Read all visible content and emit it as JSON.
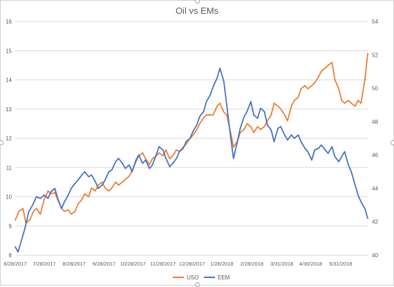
{
  "chart_data": {
    "type": "line",
    "title": "Oil vs EMs",
    "x_tick_labels": [
      "6/28/2017",
      "7/28/2017",
      "8/28/2017",
      "9/28/2017",
      "10/28/2017",
      "11/28/2017",
      "12/28/2017",
      "1/28/2018",
      "2/28/2018",
      "3/31/2018",
      "4/30/2018",
      "5/31/2018"
    ],
    "y_left_ticks": [
      "8",
      "9",
      "10",
      "11",
      "12",
      "13",
      "14",
      "15",
      "16"
    ],
    "y_right_ticks": [
      "40",
      "42",
      "44",
      "46",
      "48",
      "50",
      "52",
      "54"
    ],
    "ylim_left": [
      8,
      16
    ],
    "ylim_right": [
      40,
      54
    ],
    "grid": "horizontal",
    "legend_position": "bottom",
    "series": [
      {
        "name": "USO",
        "axis": "left",
        "color": "#ED7D31",
        "points": [
          [
            "2017-06-28",
            9.2
          ],
          [
            "2017-07-02",
            9.5
          ],
          [
            "2017-07-06",
            9.6
          ],
          [
            "2017-07-09",
            9.1
          ],
          [
            "2017-07-13",
            9.2
          ],
          [
            "2017-07-17",
            9.5
          ],
          [
            "2017-07-20",
            9.6
          ],
          [
            "2017-07-24",
            9.4
          ],
          [
            "2017-07-28",
            9.9
          ],
          [
            "2017-08-01",
            10.2
          ],
          [
            "2017-08-04",
            10.1
          ],
          [
            "2017-08-08",
            10.15
          ],
          [
            "2017-08-11",
            9.9
          ],
          [
            "2017-08-15",
            9.6
          ],
          [
            "2017-08-18",
            9.5
          ],
          [
            "2017-08-22",
            9.55
          ],
          [
            "2017-08-25",
            9.4
          ],
          [
            "2017-08-29",
            9.5
          ],
          [
            "2017-09-01",
            9.75
          ],
          [
            "2017-09-05",
            9.9
          ],
          [
            "2017-09-08",
            10.1
          ],
          [
            "2017-09-12",
            10.0
          ],
          [
            "2017-09-15",
            10.3
          ],
          [
            "2017-09-19",
            10.2
          ],
          [
            "2017-09-22",
            10.4
          ],
          [
            "2017-09-26",
            10.5
          ],
          [
            "2017-09-29",
            10.3
          ],
          [
            "2017-10-03",
            10.2
          ],
          [
            "2017-10-06",
            10.3
          ],
          [
            "2017-10-10",
            10.5
          ],
          [
            "2017-10-13",
            10.4
          ],
          [
            "2017-10-17",
            10.5
          ],
          [
            "2017-10-20",
            10.6
          ],
          [
            "2017-10-24",
            10.7
          ],
          [
            "2017-10-27",
            10.9
          ],
          [
            "2017-10-31",
            11.2
          ],
          [
            "2017-11-03",
            11.4
          ],
          [
            "2017-11-07",
            11.5
          ],
          [
            "2017-11-10",
            11.3
          ],
          [
            "2017-11-14",
            11.1
          ],
          [
            "2017-11-17",
            11.3
          ],
          [
            "2017-11-21",
            11.4
          ],
          [
            "2017-11-24",
            11.5
          ],
          [
            "2017-11-28",
            11.4
          ],
          [
            "2017-12-01",
            11.6
          ],
          [
            "2017-12-05",
            11.3
          ],
          [
            "2017-12-08",
            11.4
          ],
          [
            "2017-12-12",
            11.6
          ],
          [
            "2017-12-15",
            11.55
          ],
          [
            "2017-12-19",
            11.7
          ],
          [
            "2017-12-22",
            11.8
          ],
          [
            "2017-12-26",
            12.0
          ],
          [
            "2017-12-29",
            12.1
          ],
          [
            "2018-01-02",
            12.3
          ],
          [
            "2018-01-05",
            12.5
          ],
          [
            "2018-01-09",
            12.7
          ],
          [
            "2018-01-12",
            12.8
          ],
          [
            "2018-01-16",
            12.8
          ],
          [
            "2018-01-19",
            12.8
          ],
          [
            "2018-01-23",
            13.1
          ],
          [
            "2018-01-26",
            13.2
          ],
          [
            "2018-01-30",
            12.9
          ],
          [
            "2018-02-02",
            12.8
          ],
          [
            "2018-02-06",
            12.2
          ],
          [
            "2018-02-09",
            11.7
          ],
          [
            "2018-02-13",
            11.9
          ],
          [
            "2018-02-16",
            12.2
          ],
          [
            "2018-02-20",
            12.3
          ],
          [
            "2018-02-23",
            12.5
          ],
          [
            "2018-02-27",
            12.4
          ],
          [
            "2018-03-02",
            12.2
          ],
          [
            "2018-03-06",
            12.4
          ],
          [
            "2018-03-09",
            12.3
          ],
          [
            "2018-03-13",
            12.4
          ],
          [
            "2018-03-16",
            12.6
          ],
          [
            "2018-03-20",
            12.8
          ],
          [
            "2018-03-23",
            13.2
          ],
          [
            "2018-03-27",
            13.1
          ],
          [
            "2018-03-30",
            13.0
          ],
          [
            "2018-04-03",
            12.8
          ],
          [
            "2018-04-06",
            12.6
          ],
          [
            "2018-04-10",
            13.1
          ],
          [
            "2018-04-13",
            13.3
          ],
          [
            "2018-04-17",
            13.4
          ],
          [
            "2018-04-20",
            13.7
          ],
          [
            "2018-04-24",
            13.8
          ],
          [
            "2018-04-27",
            13.7
          ],
          [
            "2018-05-01",
            13.8
          ],
          [
            "2018-05-04",
            13.9
          ],
          [
            "2018-05-08",
            14.1
          ],
          [
            "2018-05-11",
            14.3
          ],
          [
            "2018-05-15",
            14.4
          ],
          [
            "2018-05-18",
            14.5
          ],
          [
            "2018-05-22",
            14.6
          ],
          [
            "2018-05-25",
            14.0
          ],
          [
            "2018-05-29",
            13.7
          ],
          [
            "2018-06-01",
            13.3
          ],
          [
            "2018-06-04",
            13.2
          ],
          [
            "2018-06-08",
            13.3
          ],
          [
            "2018-06-11",
            13.2
          ],
          [
            "2018-06-15",
            13.1
          ],
          [
            "2018-06-18",
            13.3
          ],
          [
            "2018-06-21",
            13.2
          ],
          [
            "2018-06-25",
            14.0
          ],
          [
            "2018-06-28",
            14.9
          ]
        ]
      },
      {
        "name": "EEM",
        "axis": "right",
        "color": "#4472C4",
        "points": [
          [
            "2017-06-28",
            40.5
          ],
          [
            "2017-07-01",
            40.2
          ],
          [
            "2017-07-05",
            41.0
          ],
          [
            "2017-07-08",
            41.6
          ],
          [
            "2017-07-12",
            42.6
          ],
          [
            "2017-07-16",
            43.0
          ],
          [
            "2017-07-20",
            43.5
          ],
          [
            "2017-07-24",
            43.4
          ],
          [
            "2017-07-28",
            43.6
          ],
          [
            "2017-08-01",
            43.4
          ],
          [
            "2017-08-04",
            43.8
          ],
          [
            "2017-08-08",
            44.0
          ],
          [
            "2017-08-11",
            43.4
          ],
          [
            "2017-08-15",
            42.8
          ],
          [
            "2017-08-18",
            43.2
          ],
          [
            "2017-08-22",
            43.6
          ],
          [
            "2017-08-25",
            44.0
          ],
          [
            "2017-08-29",
            44.3
          ],
          [
            "2017-09-01",
            44.5
          ],
          [
            "2017-09-05",
            44.8
          ],
          [
            "2017-09-08",
            45.0
          ],
          [
            "2017-09-12",
            44.7
          ],
          [
            "2017-09-15",
            44.8
          ],
          [
            "2017-09-19",
            44.4
          ],
          [
            "2017-09-22",
            44.0
          ],
          [
            "2017-09-26",
            44.2
          ],
          [
            "2017-09-29",
            44.5
          ],
          [
            "2017-10-03",
            45.0
          ],
          [
            "2017-10-06",
            45.1
          ],
          [
            "2017-10-10",
            45.6
          ],
          [
            "2017-10-13",
            45.8
          ],
          [
            "2017-10-17",
            45.5
          ],
          [
            "2017-10-20",
            45.2
          ],
          [
            "2017-10-24",
            45.4
          ],
          [
            "2017-10-27",
            45.0
          ],
          [
            "2017-10-31",
            45.7
          ],
          [
            "2017-11-03",
            46.0
          ],
          [
            "2017-11-07",
            45.5
          ],
          [
            "2017-11-10",
            45.7
          ],
          [
            "2017-11-14",
            45.2
          ],
          [
            "2017-11-17",
            45.4
          ],
          [
            "2017-11-21",
            46.0
          ],
          [
            "2017-11-24",
            46.5
          ],
          [
            "2017-11-28",
            46.3
          ],
          [
            "2017-12-01",
            45.8
          ],
          [
            "2017-12-05",
            45.3
          ],
          [
            "2017-12-08",
            45.5
          ],
          [
            "2017-12-12",
            45.8
          ],
          [
            "2017-12-15",
            46.2
          ],
          [
            "2017-12-19",
            46.4
          ],
          [
            "2017-12-22",
            46.8
          ],
          [
            "2017-12-26",
            47.0
          ],
          [
            "2017-12-29",
            47.4
          ],
          [
            "2018-01-02",
            47.8
          ],
          [
            "2018-01-05",
            48.3
          ],
          [
            "2018-01-09",
            48.6
          ],
          [
            "2018-01-12",
            49.2
          ],
          [
            "2018-01-16",
            49.6
          ],
          [
            "2018-01-19",
            50.1
          ],
          [
            "2018-01-23",
            50.6
          ],
          [
            "2018-01-26",
            51.2
          ],
          [
            "2018-01-30",
            50.4
          ],
          [
            "2018-02-02",
            49.0
          ],
          [
            "2018-02-06",
            47.1
          ],
          [
            "2018-02-09",
            45.8
          ],
          [
            "2018-02-13",
            46.8
          ],
          [
            "2018-02-16",
            47.6
          ],
          [
            "2018-02-20",
            48.3
          ],
          [
            "2018-02-23",
            48.6
          ],
          [
            "2018-02-27",
            49.2
          ],
          [
            "2018-03-02",
            48.4
          ],
          [
            "2018-03-06",
            48.2
          ],
          [
            "2018-03-09",
            48.8
          ],
          [
            "2018-03-13",
            48.6
          ],
          [
            "2018-03-16",
            47.8
          ],
          [
            "2018-03-20",
            47.5
          ],
          [
            "2018-03-23",
            46.8
          ],
          [
            "2018-03-27",
            47.6
          ],
          [
            "2018-03-30",
            47.7
          ],
          [
            "2018-04-03",
            47.2
          ],
          [
            "2018-04-06",
            46.9
          ],
          [
            "2018-04-10",
            47.2
          ],
          [
            "2018-04-13",
            47.0
          ],
          [
            "2018-04-17",
            47.2
          ],
          [
            "2018-04-20",
            46.8
          ],
          [
            "2018-04-24",
            46.4
          ],
          [
            "2018-04-27",
            46.2
          ],
          [
            "2018-05-01",
            45.7
          ],
          [
            "2018-05-04",
            46.3
          ],
          [
            "2018-05-08",
            46.4
          ],
          [
            "2018-05-11",
            46.6
          ],
          [
            "2018-05-15",
            46.3
          ],
          [
            "2018-05-18",
            46.1
          ],
          [
            "2018-05-22",
            46.5
          ],
          [
            "2018-05-25",
            45.9
          ],
          [
            "2018-05-29",
            45.6
          ],
          [
            "2018-06-01",
            45.9
          ],
          [
            "2018-06-04",
            46.2
          ],
          [
            "2018-06-08",
            45.4
          ],
          [
            "2018-06-11",
            45.0
          ],
          [
            "2018-06-15",
            44.2
          ],
          [
            "2018-06-18",
            43.6
          ],
          [
            "2018-06-21",
            43.2
          ],
          [
            "2018-06-25",
            42.8
          ],
          [
            "2018-06-28",
            42.2
          ]
        ]
      }
    ]
  }
}
